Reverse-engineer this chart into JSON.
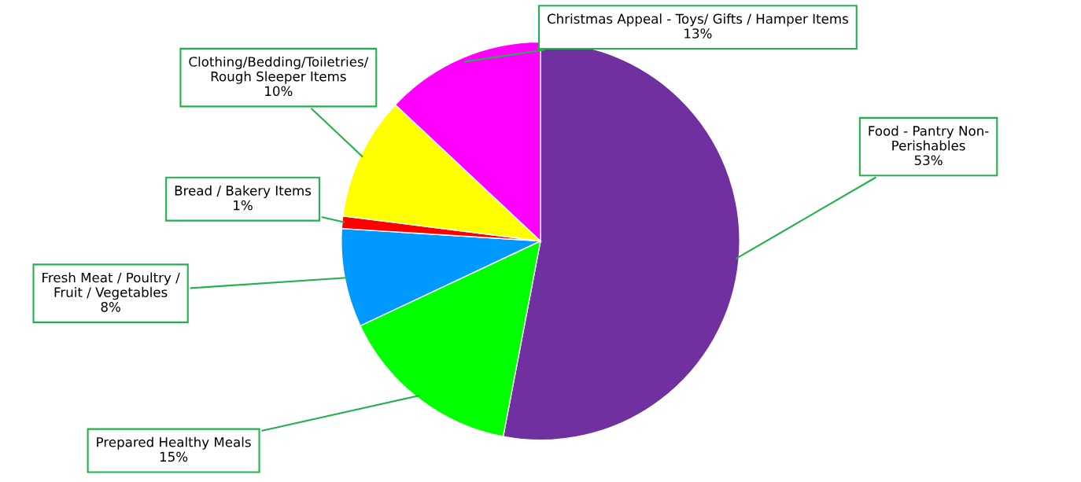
{
  "chart_data": {
    "type": "pie",
    "categories": [
      "Food - Pantry Non-\nPerishables",
      "Prepared Healthy Meals",
      "Fresh Meat / Poultry /\nFruit / Vegetables",
      "Bread / Bakery Items",
      "Clothing/Bedding/Toiletries/\nRough Sleeper Items",
      "Christmas Appeal - Toys/ Gifts / Hamper Items"
    ],
    "values": [
      53,
      15,
      8,
      1,
      10,
      13
    ],
    "value_labels": [
      "53%",
      "15%",
      "8%",
      "1%",
      "10%",
      "13%"
    ],
    "colors": [
      "#7030a0",
      "#00ff00",
      "#0099ff",
      "#ff0000",
      "#ffff00",
      "#ff00ff"
    ]
  }
}
